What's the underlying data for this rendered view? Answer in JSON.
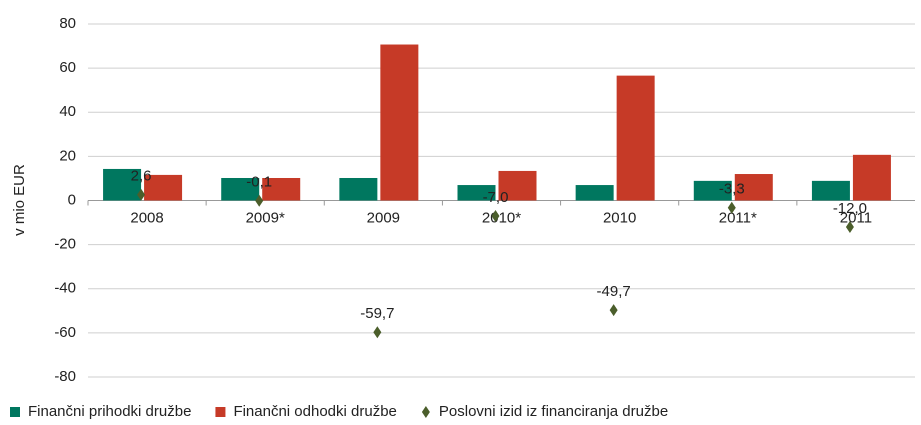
{
  "chart_data": {
    "type": "bar",
    "y_axis_label": "v mio EUR",
    "categories": [
      "2008",
      "2009*",
      "2009",
      "2010*",
      "2010",
      "2011*",
      "2011"
    ],
    "series": [
      {
        "name": "Finančni prihodki družbe",
        "color": "#00775f",
        "type": "bar",
        "values": [
          14.3,
          10.2,
          10.2,
          7,
          7,
          8.9,
          8.9
        ]
      },
      {
        "name": "Finančni odhodki družbe",
        "color": "#c63a27",
        "type": "bar",
        "values": [
          11.6,
          10.2,
          70.7,
          13.4,
          56.6,
          12,
          20.7
        ]
      },
      {
        "name": "Poslovni izid iz financiranja družbe",
        "color": "#4b5e2b",
        "type": "scatter",
        "values": [
          2.6,
          -0.1,
          -59.7,
          -7.0,
          -49.7,
          -3.3,
          -12.0
        ],
        "value_labels": [
          "2,6",
          "-0,1",
          "-59,7",
          "-7,0",
          "-49,7",
          "-3,3",
          "-12,0"
        ]
      }
    ],
    "ylim": [
      -80,
      80
    ],
    "yticks": [
      -80,
      -60,
      -40,
      -20,
      0,
      20,
      40,
      60,
      80
    ],
    "grid": true
  }
}
